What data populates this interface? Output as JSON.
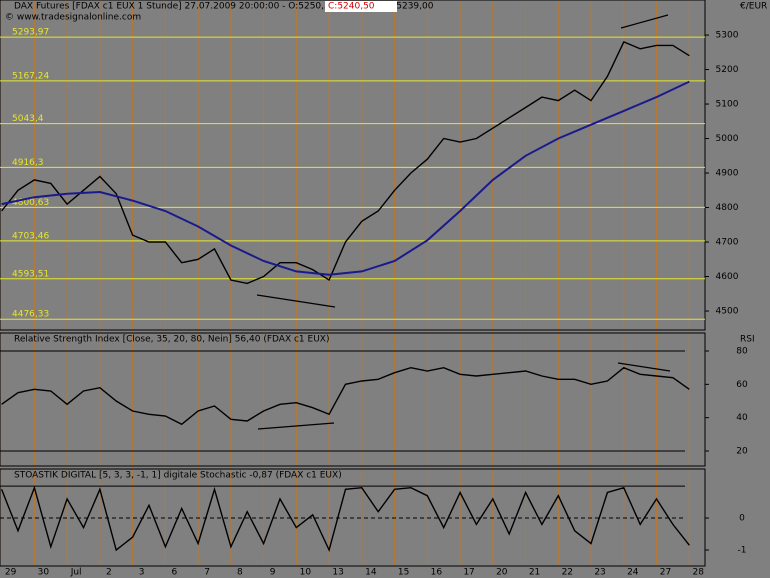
{
  "chart_data": [
    {
      "type": "line",
      "title": "DAX Futures [FDAX c1 EUX  1 Stunde] 27.07.2009 20:00:00 - O:5250,50 H:5251,50 L:5239,00",
      "close_label": "C:5240,50",
      "copyright": "© www.tradesignalonline.com",
      "unit": "€/EUR",
      "xlim": [
        -0.05,
        21.48
      ],
      "ylim": [
        4445,
        5361
      ],
      "yticks": [
        4500,
        4600,
        4700,
        4800,
        4900,
        5000,
        5100,
        5200,
        5300
      ],
      "levels": [
        {
          "value": 5293.97,
          "label": "5293,97"
        },
        {
          "value": 5167.24,
          "label": "5167,24"
        },
        {
          "value": 5043.4,
          "label": "5043,4"
        },
        {
          "value": 4916.3,
          "label": "4916,3"
        },
        {
          "value": 4800.63,
          "label": "4800,63"
        },
        {
          "value": 4703.46,
          "label": "4703,46"
        },
        {
          "value": 4593.51,
          "label": "4593,51"
        },
        {
          "value": 4476.33,
          "label": "4476,33"
        }
      ],
      "level_color": "#e6e62e",
      "series": [
        {
          "color": "#000000",
          "x": [
            0,
            0.5,
            1,
            1.5,
            2,
            2.5,
            3,
            3.5,
            4,
            4.5,
            5,
            5.5,
            6,
            6.5,
            7,
            7.5,
            8,
            8.5,
            9,
            9.5,
            10,
            10.5,
            11,
            11.5,
            12,
            12.5,
            13,
            13.5,
            14,
            14.5,
            15,
            15.5,
            16,
            16.5,
            17,
            17.5,
            18,
            18.5,
            19,
            19.5,
            20,
            20.5,
            21
          ],
          "values": [
            4790,
            4850,
            4880,
            4870,
            4810,
            4850,
            4890,
            4840,
            4720,
            4700,
            4700,
            4640,
            4650,
            4680,
            4590,
            4580,
            4600,
            4640,
            4640,
            4620,
            4590,
            4700,
            4760,
            4790,
            4850,
            4900,
            4940,
            5000,
            4990,
            5000,
            5030,
            5060,
            5090,
            5120,
            5110,
            5140,
            5110,
            5180,
            5280,
            5260,
            5270,
            5270,
            5240
          ]
        },
        {
          "color": "#1a1a8c",
          "x": [
            0,
            1,
            2,
            3,
            4,
            5,
            6,
            7,
            8,
            9,
            10,
            11,
            12,
            13,
            14,
            15,
            16,
            17,
            18,
            19,
            20,
            21
          ],
          "values": [
            4810,
            4830,
            4840,
            4845,
            4820,
            4790,
            4745,
            4690,
            4645,
            4615,
            4605,
            4615,
            4645,
            4705,
            4790,
            4880,
            4950,
            5000,
            5040,
            5080,
            5120,
            5165
          ]
        }
      ]
    },
    {
      "type": "line",
      "title": "Relative Strength Index [Close, 35, 20, 80, Nein] 56,40 (FDAX c1 EUX)",
      "unit": "RSI",
      "xlim": [
        -0.05,
        21.48
      ],
      "ylim": [
        13.4,
        83.6
      ],
      "yticks": [
        20,
        40,
        60,
        80
      ],
      "hlines": [
        80,
        20
      ],
      "series": [
        {
          "color": "#000000",
          "x": [
            0,
            0.5,
            1,
            1.5,
            2,
            2.5,
            3,
            3.5,
            4,
            4.5,
            5,
            5.5,
            6,
            6.5,
            7,
            7.5,
            8,
            8.5,
            9,
            9.5,
            10,
            10.5,
            11,
            11.5,
            12,
            12.5,
            13,
            13.5,
            14,
            14.5,
            15,
            15.5,
            16,
            16.5,
            17,
            17.5,
            18,
            18.5,
            19,
            19.5,
            20,
            20.5,
            21
          ],
          "values": [
            48,
            55,
            57,
            56,
            48,
            56,
            58,
            50,
            44,
            42,
            41,
            36,
            44,
            47,
            39,
            38,
            44,
            48,
            49,
            46,
            42,
            60,
            62,
            63,
            67,
            70,
            68,
            70,
            66,
            65,
            66,
            67,
            68,
            65,
            63,
            63,
            60,
            62,
            70,
            66,
            65,
            64,
            57
          ]
        }
      ]
    },
    {
      "type": "line",
      "title": "STOASTIK DIGITAL [5, 3, 3, -1, 1] digitale Stochastic -0,87 (FDAX c1 EUX)",
      "xlim": [
        -0.05,
        21.48
      ],
      "ylim": [
        -1.625,
        1.19
      ],
      "yticks": [
        0,
        -1
      ],
      "hlines": [
        1,
        0
      ],
      "xticks": [
        {
          "value": 0,
          "label": "29"
        },
        {
          "value": 1,
          "label": "30"
        },
        {
          "value": 2,
          "label": "Jul"
        },
        {
          "value": 3,
          "label": "2"
        },
        {
          "value": 4,
          "label": "3"
        },
        {
          "value": 5,
          "label": "6"
        },
        {
          "value": 6,
          "label": "7"
        },
        {
          "value": 7,
          "label": "8"
        },
        {
          "value": 8,
          "label": "9"
        },
        {
          "value": 9,
          "label": "10"
        },
        {
          "value": 10,
          "label": "13"
        },
        {
          "value": 11,
          "label": "14"
        },
        {
          "value": 12,
          "label": "15"
        },
        {
          "value": 13,
          "label": "16"
        },
        {
          "value": 14,
          "label": "17"
        },
        {
          "value": 15,
          "label": "20"
        },
        {
          "value": 16,
          "label": "21"
        },
        {
          "value": 17,
          "label": "22"
        },
        {
          "value": 18,
          "label": "23"
        },
        {
          "value": 19,
          "label": "24"
        },
        {
          "value": 20,
          "label": "27"
        },
        {
          "value": 21,
          "label": "28"
        }
      ],
      "series": [
        {
          "color": "#000000",
          "x": [
            0,
            0.5,
            1,
            1.5,
            2,
            2.5,
            3,
            3.5,
            4,
            4.5,
            5,
            5.5,
            6,
            6.5,
            7,
            7.5,
            8,
            8.5,
            9,
            9.5,
            10,
            10.5,
            11,
            11.5,
            12,
            12.5,
            13,
            13.5,
            14,
            14.5,
            15,
            15.5,
            16,
            16.5,
            17,
            17.5,
            18,
            18.5,
            19,
            19.5,
            20,
            20.5,
            21
          ],
          "values": [
            0.9,
            -0.4,
            0.95,
            -0.9,
            0.6,
            -0.3,
            0.9,
            -1,
            -0.6,
            0.4,
            -0.9,
            0.3,
            -0.8,
            0.9,
            -0.9,
            0.2,
            -0.8,
            0.6,
            -0.3,
            0.1,
            -1,
            0.9,
            0.95,
            0.2,
            0.9,
            0.95,
            0.7,
            -0.3,
            0.8,
            -0.2,
            0.6,
            -0.5,
            0.8,
            -0.2,
            0.7,
            -0.4,
            -0.8,
            0.8,
            0.95,
            -0.2,
            0.6,
            -0.2,
            -0.85
          ]
        }
      ]
    }
  ]
}
